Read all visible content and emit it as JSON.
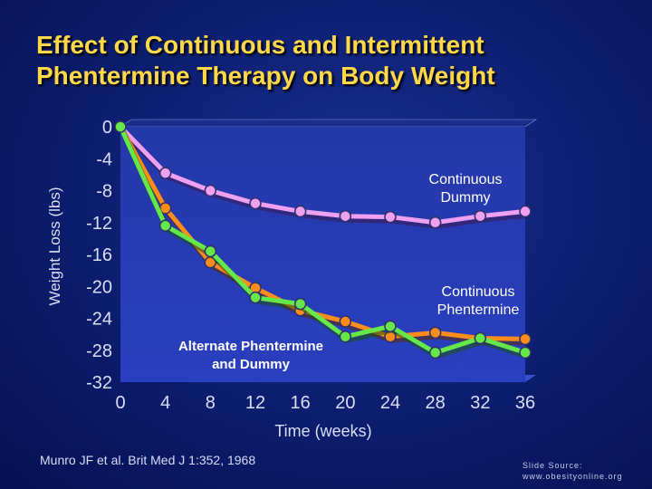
{
  "title": {
    "line1": "Effect of Continuous and Intermittent",
    "line2": "Phentermine Therapy on Body Weight"
  },
  "citation": "Munro JF et al. Brit Med J 1:352, 1968",
  "source": {
    "line1": "Slide Source:",
    "line2": "www.obesityonline.org"
  },
  "chart_data": {
    "type": "line",
    "title": "Effect of Continuous and Intermittent Phentermine Therapy on Body Weight",
    "xlabel": "Time (weeks)",
    "ylabel": "Weight Loss (lbs)",
    "xlim": [
      0,
      36
    ],
    "ylim": [
      -32,
      0
    ],
    "xticks": [
      0,
      4,
      8,
      12,
      16,
      20,
      24,
      28,
      32,
      36
    ],
    "yticks": [
      0,
      -4,
      -8,
      -12,
      -16,
      -20,
      -24,
      -28,
      -32
    ],
    "grid": false,
    "x": [
      0,
      4,
      8,
      12,
      16,
      20,
      24,
      28,
      32,
      36
    ],
    "series": [
      {
        "name": "Continuous Dummy",
        "label_lines": [
          "Continuous",
          "Dummy"
        ],
        "color": "#f0a0f0",
        "values": [
          0,
          -5.8,
          -8,
          -9.6,
          -10.6,
          -11.2,
          -11.3,
          -12,
          -11.2,
          -10.6
        ]
      },
      {
        "name": "Continuous Phentermine",
        "label_lines": [
          "Continuous",
          "Phentermine"
        ],
        "color": "#ff8c1a",
        "values": [
          0,
          -10.2,
          -17,
          -20.2,
          -23,
          -24.4,
          -26.3,
          -25.8,
          -26.5,
          -26.6
        ]
      },
      {
        "name": "Alternate Phentermine and Dummy",
        "label_lines": [
          "Alternate Phentermine",
          "and Dummy"
        ],
        "color": "#66e84a",
        "values": [
          0,
          -12.4,
          -15.6,
          -21.4,
          -22.2,
          -26.3,
          -25,
          -28.3,
          -26.5,
          -28.3
        ]
      }
    ]
  }
}
